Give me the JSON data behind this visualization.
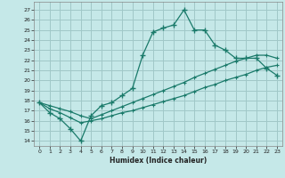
{
  "xlabel": "Humidex (Indice chaleur)",
  "bg_color": "#c5e8e8",
  "grid_color": "#a0c8c8",
  "line_color": "#1a7a6a",
  "xlim": [
    -0.5,
    23.5
  ],
  "ylim": [
    13.5,
    27.8
  ],
  "xticks": [
    0,
    1,
    2,
    3,
    4,
    5,
    6,
    7,
    8,
    9,
    10,
    11,
    12,
    13,
    14,
    15,
    16,
    17,
    18,
    19,
    20,
    21,
    22,
    23
  ],
  "yticks": [
    14,
    15,
    16,
    17,
    18,
    19,
    20,
    21,
    22,
    23,
    24,
    25,
    26,
    27
  ],
  "line1_x": [
    0,
    1,
    2,
    3,
    4,
    5,
    6,
    7,
    8,
    9,
    10,
    11,
    12,
    13,
    14,
    15,
    16,
    17,
    18,
    19,
    20,
    21,
    22,
    23
  ],
  "line1_y": [
    17.8,
    16.8,
    16.2,
    15.2,
    14.0,
    16.5,
    17.5,
    17.8,
    18.5,
    19.2,
    22.5,
    24.8,
    25.2,
    25.5,
    27.0,
    25.0,
    25.0,
    23.5,
    23.0,
    22.2,
    22.2,
    22.2,
    21.2,
    20.5
  ],
  "line2_x": [
    0,
    1,
    2,
    3,
    4,
    5,
    6,
    7,
    8,
    9,
    10,
    11,
    12,
    13,
    14,
    15,
    16,
    17,
    18,
    19,
    20,
    21,
    22,
    23
  ],
  "line2_y": [
    17.8,
    17.2,
    16.8,
    16.3,
    15.8,
    16.0,
    16.2,
    16.5,
    16.8,
    17.0,
    17.3,
    17.6,
    17.9,
    18.2,
    18.5,
    18.9,
    19.3,
    19.6,
    20.0,
    20.3,
    20.6,
    21.0,
    21.3,
    21.5
  ],
  "line3_x": [
    0,
    1,
    2,
    3,
    4,
    5,
    6,
    7,
    8,
    9,
    10,
    11,
    12,
    13,
    14,
    15,
    16,
    17,
    18,
    19,
    20,
    21,
    22,
    23
  ],
  "line3_y": [
    17.8,
    17.5,
    17.2,
    16.9,
    16.5,
    16.2,
    16.6,
    17.0,
    17.4,
    17.8,
    18.2,
    18.6,
    19.0,
    19.4,
    19.8,
    20.3,
    20.7,
    21.1,
    21.5,
    21.9,
    22.2,
    22.5,
    22.5,
    22.2
  ]
}
